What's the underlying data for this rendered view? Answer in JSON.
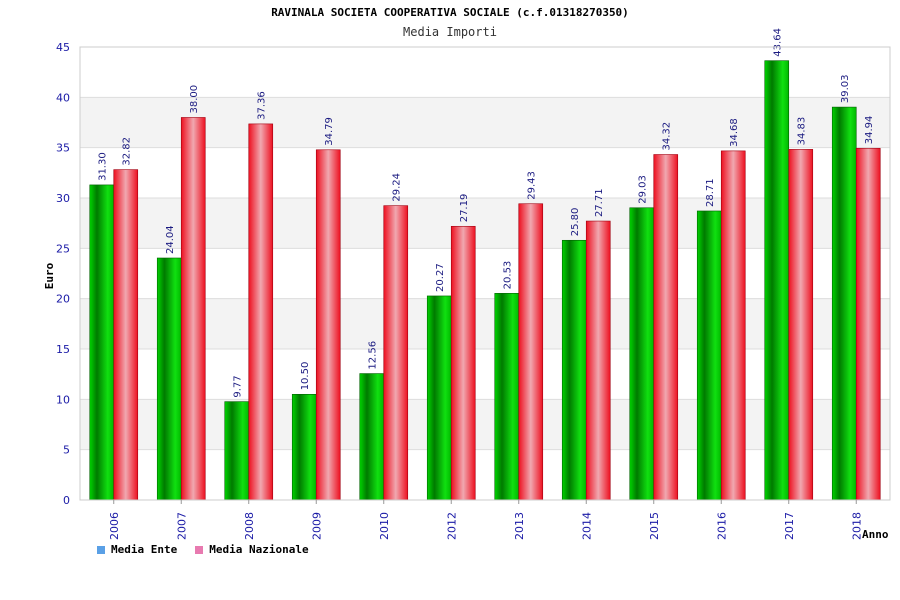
{
  "colors": {
    "ente": "#00c000",
    "nazionale": "#ee1a2a",
    "legend_ente": "#5aa0e6",
    "legend_nazionale": "#e87ab0",
    "band": "#f3f3f3"
  },
  "chart_data": {
    "type": "bar",
    "title": "RAVINALA SOCIETA COOPERATIVA SOCIALE (c.f.01318270350)",
    "subtitle": "Media Importi",
    "xlabel": "Anno",
    "ylabel": "Euro",
    "ylim": [
      0,
      45
    ],
    "yticks": [
      0,
      5,
      10,
      15,
      20,
      25,
      30,
      35,
      40,
      45
    ],
    "categories": [
      "2006",
      "2007",
      "2008",
      "2009",
      "2010",
      "2012",
      "2013",
      "2014",
      "2015",
      "2016",
      "2017",
      "2018"
    ],
    "series": [
      {
        "name": "Media Ente",
        "values": [
          31.3,
          24.04,
          9.77,
          10.5,
          12.56,
          20.27,
          20.53,
          25.8,
          29.03,
          28.71,
          43.64,
          39.03
        ],
        "labels": [
          "31.30",
          "24.04",
          "9.77",
          "10.50",
          "12.56",
          "20.27",
          "20.53",
          "25.80",
          "29.03",
          "28.71",
          "43.64",
          "39.03"
        ]
      },
      {
        "name": "Media Nazionale",
        "values": [
          32.82,
          38.0,
          37.36,
          34.79,
          29.24,
          27.19,
          29.43,
          27.71,
          34.32,
          34.68,
          34.83,
          34.94
        ],
        "labels": [
          "32.82",
          "38.00",
          "37.36",
          "34.79",
          "29.24",
          "27.19",
          "29.43",
          "27.71",
          "34.32",
          "34.68",
          "34.83",
          "34.94"
        ]
      }
    ],
    "legend": [
      "Media Ente",
      "Media Nazionale"
    ],
    "legend_position": "bottom-left"
  }
}
